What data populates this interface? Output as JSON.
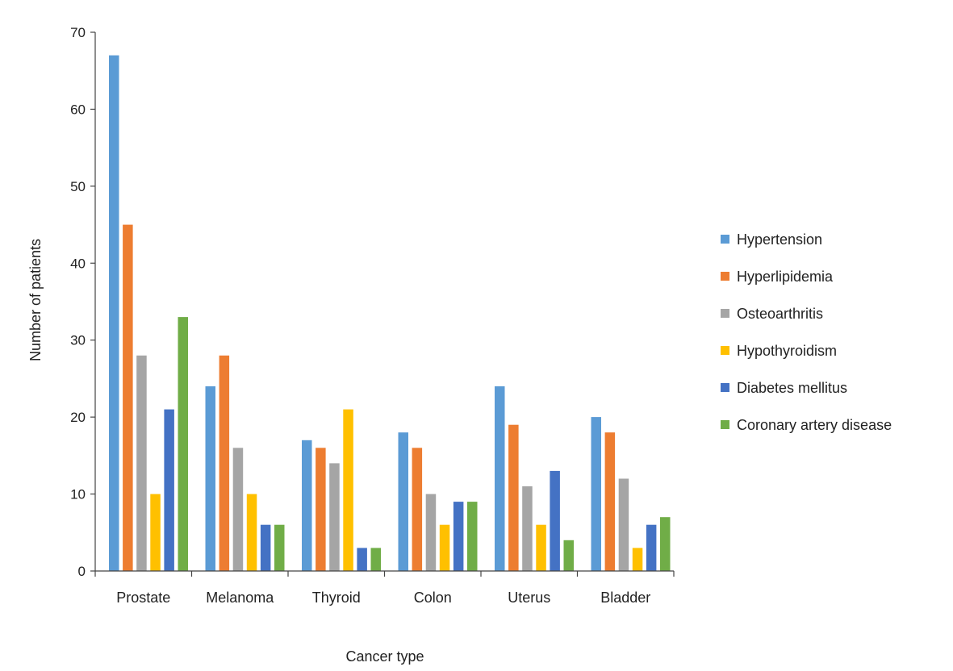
{
  "chart_data": {
    "type": "bar",
    "title": "",
    "xlabel": "Cancer type",
    "ylabel": "Number of patients",
    "ylim": [
      0,
      70
    ],
    "yticks": [
      0,
      10,
      20,
      30,
      40,
      50,
      60,
      70
    ],
    "grid": false,
    "legend_position": "right",
    "categories": [
      "Prostate",
      "Melanoma",
      "Thyroid",
      "Colon",
      "Uterus",
      "Bladder"
    ],
    "series": [
      {
        "name": "Hypertension",
        "color": "#5b9bd5",
        "values": [
          67,
          24,
          17,
          18,
          24,
          20
        ]
      },
      {
        "name": "Hyperlipidemia",
        "color": "#ed7d31",
        "values": [
          45,
          28,
          16,
          16,
          19,
          18
        ]
      },
      {
        "name": "Osteoarthritis",
        "color": "#a5a5a5",
        "values": [
          28,
          16,
          14,
          10,
          11,
          12
        ]
      },
      {
        "name": "Hypothyroidism",
        "color": "#ffc000",
        "values": [
          10,
          10,
          21,
          6,
          6,
          3
        ]
      },
      {
        "name": "Diabetes mellitus",
        "color": "#4472c4",
        "values": [
          21,
          6,
          3,
          9,
          13,
          6
        ]
      },
      {
        "name": "Coronary artery disease",
        "color": "#70ad47",
        "values": [
          33,
          6,
          3,
          9,
          4,
          7
        ]
      }
    ]
  }
}
